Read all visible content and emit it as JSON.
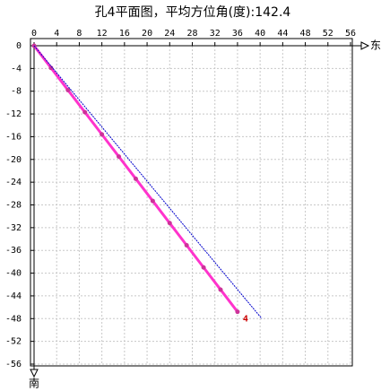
{
  "chart_data": {
    "type": "line",
    "title": "孔4平面图，平均方位角(度):142.4",
    "x_label": "东",
    "y_label": "南",
    "xlim": [
      0,
      56
    ],
    "ylim": [
      -56,
      0
    ],
    "xticks": [
      0,
      4,
      8,
      12,
      16,
      20,
      24,
      28,
      32,
      36,
      40,
      44,
      48,
      52,
      56
    ],
    "yticks": [
      0,
      -4,
      -8,
      -12,
      -16,
      -20,
      -24,
      -28,
      -32,
      -36,
      -40,
      -44,
      -48,
      -52,
      -56
    ],
    "grid": true,
    "end_label": "4",
    "series": [
      {
        "color": "#ff33cc",
        "x": [
          0,
          3,
          6,
          9,
          12,
          15,
          18,
          21,
          24,
          27,
          30,
          33,
          36
        ],
        "values": [
          0,
          -3.9,
          -7.8,
          -11.7,
          -15.6,
          -19.5,
          -23.4,
          -27.3,
          -31.2,
          -35.1,
          -39,
          -42.9,
          -46.8
        ]
      },
      {
        "color": "#0000cc",
        "x": [
          0,
          40.3
        ],
        "values": [
          0,
          -48
        ]
      }
    ]
  }
}
